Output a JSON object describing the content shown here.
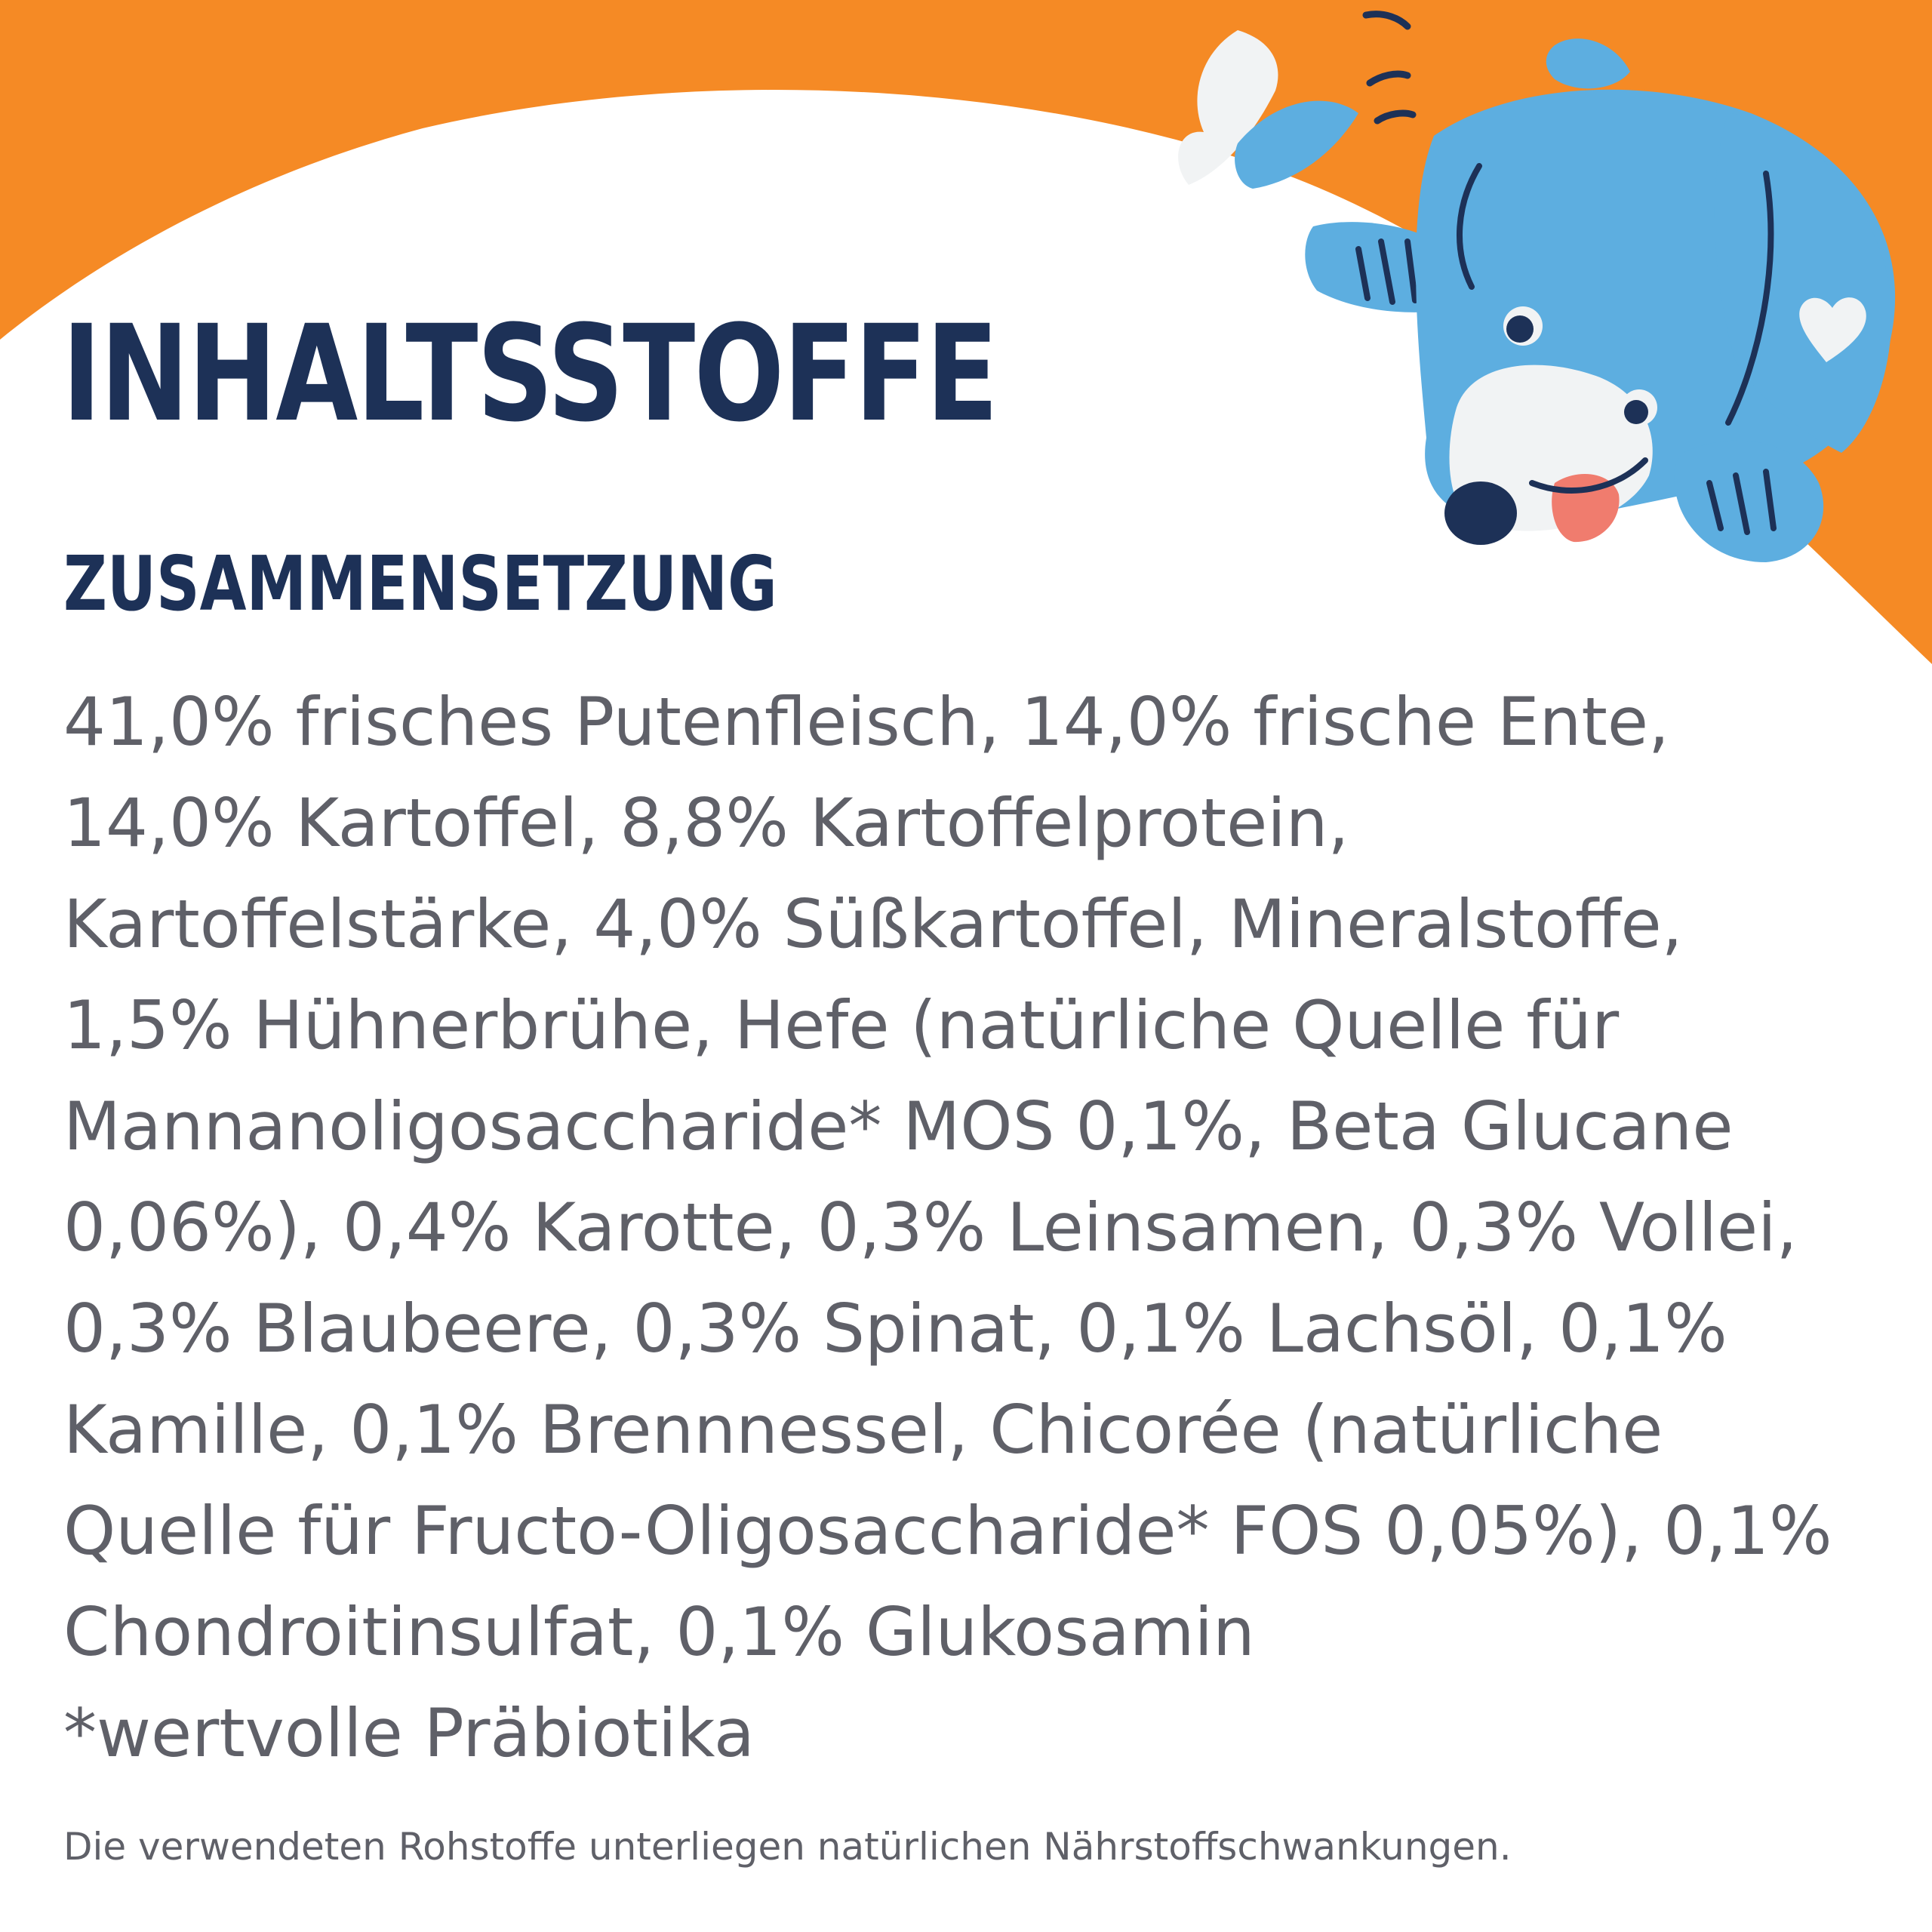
{
  "colors": {
    "orange": "#F58A25",
    "navy": "#1D3157",
    "text_grey": "#5F6068",
    "dog_blue": "#5DAEE0",
    "dog_white": "#F1F3F4",
    "tongue": "#F07C6E"
  },
  "heading": {
    "title": "INHALTSSTOFFE",
    "subtitle": "ZUSAMMENSETZUNG"
  },
  "ingredients": {
    "lines": [
      "41,0% frisches Putenfleisch, 14,0% frische Ente,",
      "14,0% Kartoffel, 8,8% Kartoffelprotein,",
      "Kartoffelstärke, 4,0% Süßkartoffel, Mineralstoffe,",
      "1,5% Hühnerbrühe, Hefe (natürliche Quelle für",
      "Mannanoligosaccharide* MOS 0,1%, Beta Glucane",
      "0,06%), 0,4% Karotte, 0,3% Leinsamen, 0,3% Vollei,",
      "0,3% Blaubeere, 0,3% Spinat, 0,1% Lachsöl, 0,1%",
      "Kamille, 0,1% Brennnessel, Chicorée (natürliche",
      "Quelle für Fructo-Oligosaccharide* FOS 0,05%), 0,1%",
      "Chondroitinsulfat, 0,1% Glukosamin",
      "*wertvolle Präbiotika"
    ]
  },
  "footer": {
    "disclaimer": "Die verwendeten Rohstoffe unterliegen natürlichen Nährstoffschwankungen."
  },
  "illustration": {
    "icon": "dog-icon",
    "heart_icon": "heart-icon"
  }
}
